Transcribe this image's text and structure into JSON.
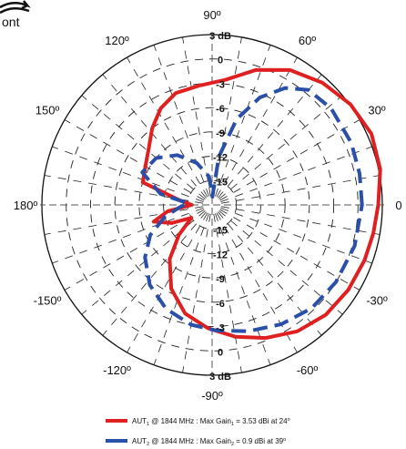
{
  "corner_label": "ont",
  "chart_data": {
    "type": "polar",
    "angle_unit": "degrees",
    "radial_unit": "dB",
    "angle_tick_labels": [
      {
        "angle": 0,
        "text": "0"
      },
      {
        "angle": 30,
        "text": "30º"
      },
      {
        "angle": 60,
        "text": "60º"
      },
      {
        "angle": 90,
        "text": "90º"
      },
      {
        "angle": 120,
        "text": "120º"
      },
      {
        "angle": 150,
        "text": "150º"
      },
      {
        "angle": 180,
        "text": "180º"
      },
      {
        "angle": -150,
        "text": "-150º"
      },
      {
        "angle": -120,
        "text": "-120º"
      },
      {
        "angle": -90,
        "text": "-90º"
      },
      {
        "angle": -60,
        "text": "-60º"
      },
      {
        "angle": -30,
        "text": "-30º"
      }
    ],
    "radial_ticks": [
      3,
      0,
      -3,
      -6,
      -9,
      -12,
      -15
    ],
    "radial_tick_labels": [
      "3 dB",
      "0",
      "-3",
      "-6",
      "-9",
      "-12",
      "-15"
    ],
    "rlim": [
      -18,
      3
    ],
    "grid": true,
    "series": [
      {
        "name": "AUT1 @ 1844 MHz : Max Gain1 = 3.53 dBi at 24º",
        "color": "#e02020",
        "dash": "solid",
        "points": [
          {
            "angle": 0,
            "r": 2.5
          },
          {
            "angle": 12,
            "r": 3.2
          },
          {
            "angle": 24,
            "r": 3.53
          },
          {
            "angle": 36,
            "r": 3.1
          },
          {
            "angle": 48,
            "r": 2.3
          },
          {
            "angle": 60,
            "r": 1.2
          },
          {
            "angle": 72,
            "r": -0.5
          },
          {
            "angle": 84,
            "r": -2.5
          },
          {
            "angle": 96,
            "r": -3.2
          },
          {
            "angle": 108,
            "r": -3.5
          },
          {
            "angle": 118,
            "r": -4.5
          },
          {
            "angle": 128,
            "r": -6.0
          },
          {
            "angle": 138,
            "r": -7.5
          },
          {
            "angle": 150,
            "r": -8.5
          },
          {
            "angle": 162,
            "r": -9.0
          },
          {
            "angle": 172,
            "r": -14.0
          },
          {
            "angle": 180,
            "r": -15.5
          },
          {
            "angle": 188,
            "r": -12.5
          },
          {
            "angle": 196,
            "r": -10.5
          },
          {
            "angle": 204,
            "r": -12.5
          },
          {
            "angle": 212,
            "r": -15.0
          },
          {
            "angle": 222,
            "r": -12.5
          },
          {
            "angle": 232,
            "r": -9.5
          },
          {
            "angle": 244,
            "r": -6.5
          },
          {
            "angle": 256,
            "r": -4.2
          },
          {
            "angle": 268,
            "r": -2.8
          },
          {
            "angle": 280,
            "r": -1.5
          },
          {
            "angle": 292,
            "r": -0.3
          },
          {
            "angle": 304,
            "r": 0.8
          },
          {
            "angle": 316,
            "r": 1.5
          },
          {
            "angle": 328,
            "r": 1.8
          },
          {
            "angle": 340,
            "r": 2.0
          },
          {
            "angle": 350,
            "r": 2.2
          },
          {
            "angle": 360,
            "r": 2.5
          }
        ]
      },
      {
        "name": "AUT2 @ 1844 MHz : Max Gain2 = 0.9 dBi at 39º",
        "color": "#2a4fa8",
        "dash": "dashed",
        "points": [
          {
            "angle": 0,
            "r": 0.5
          },
          {
            "angle": 12,
            "r": 0.6
          },
          {
            "angle": 24,
            "r": 0.8
          },
          {
            "angle": 39,
            "r": 0.9
          },
          {
            "angle": 50,
            "r": 0.5
          },
          {
            "angle": 58,
            "r": -1.0
          },
          {
            "angle": 66,
            "r": -3.5
          },
          {
            "angle": 74,
            "r": -7.0
          },
          {
            "angle": 82,
            "r": -12.0
          },
          {
            "angle": 88,
            "r": -17.0
          },
          {
            "angle": 96,
            "r": -14.5
          },
          {
            "angle": 110,
            "r": -12.5
          },
          {
            "angle": 125,
            "r": -10.5
          },
          {
            "angle": 140,
            "r": -9.0
          },
          {
            "angle": 155,
            "r": -8.5
          },
          {
            "angle": 168,
            "r": -11.5
          },
          {
            "angle": 176,
            "r": -15.0
          },
          {
            "angle": 184,
            "r": -14.0
          },
          {
            "angle": 194,
            "r": -12.0
          },
          {
            "angle": 206,
            "r": -9.5
          },
          {
            "angle": 218,
            "r": -7.5
          },
          {
            "angle": 232,
            "r": -5.5
          },
          {
            "angle": 246,
            "r": -4.0
          },
          {
            "angle": 260,
            "r": -3.0
          },
          {
            "angle": 272,
            "r": -2.5
          },
          {
            "angle": 286,
            "r": -1.8
          },
          {
            "angle": 300,
            "r": -1.0
          },
          {
            "angle": 314,
            "r": -0.3
          },
          {
            "angle": 328,
            "r": 0.0
          },
          {
            "angle": 344,
            "r": 0.3
          },
          {
            "angle": 360,
            "r": 0.5
          }
        ]
      }
    ]
  },
  "legend": [
    {
      "prefix": "AUT",
      "sub": "1",
      "mid": " @ 1844 MHz : Max Gain",
      "sub2": "1",
      "suffix": " = 3.53 dBi at 24",
      "sup": "o"
    },
    {
      "prefix": "AUT",
      "sub": "2",
      "mid": " @ 1844 MHz : Max Gain",
      "sub2": "2",
      "suffix": " = 0.9 dBi at 39",
      "sup": "o"
    }
  ]
}
